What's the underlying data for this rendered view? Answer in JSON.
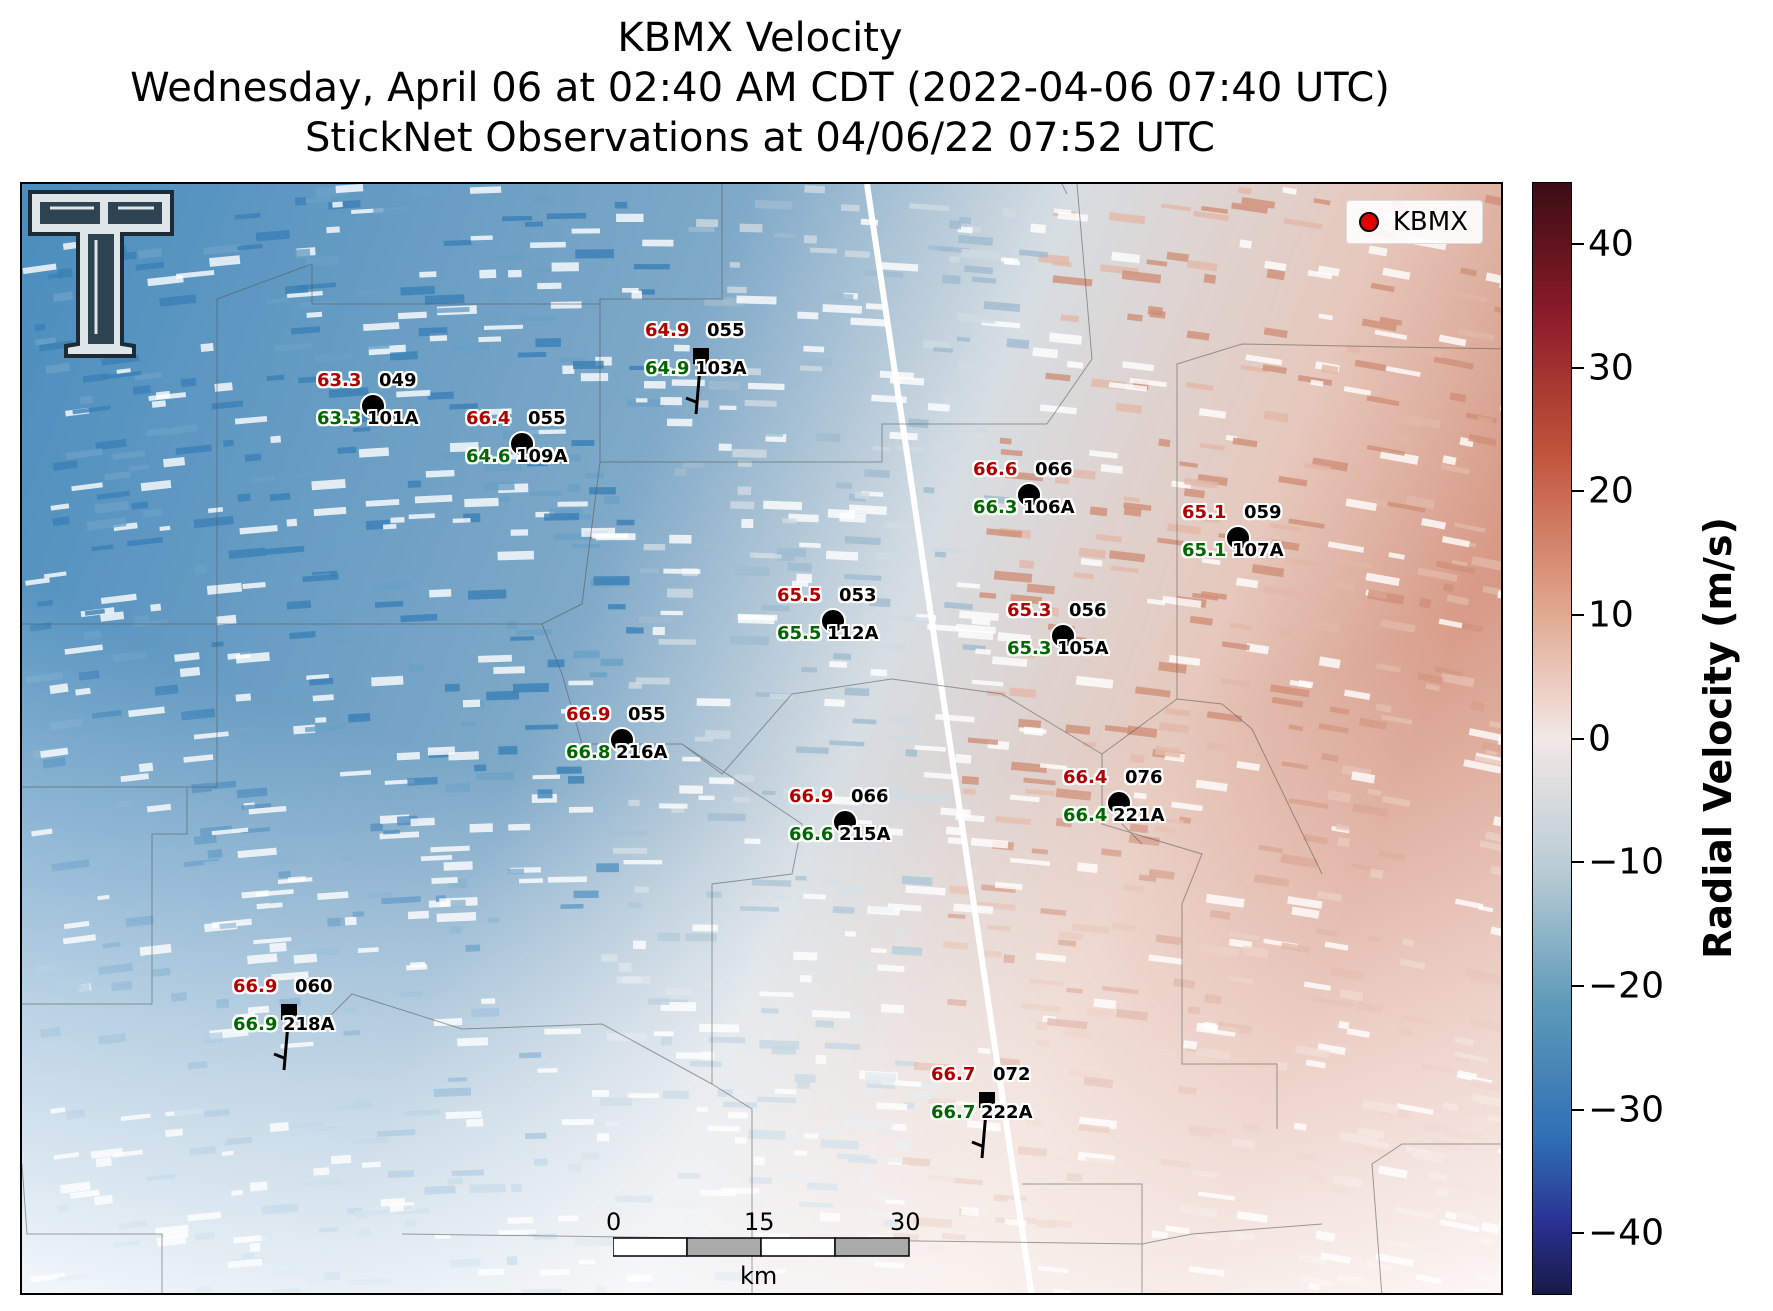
{
  "title": {
    "line1": "KBMX Velocity",
    "line2": "Wednesday, April 06 at 02:40 AM CDT (2022-04-06 07:40 UTC)",
    "line3": "StickNet Observations at 04/06/22 07:52 UTC"
  },
  "legend": {
    "label": "KBMX",
    "marker_color": "#e00000"
  },
  "colorbar": {
    "title": "Radial Velocity (m/s)",
    "ticks": [
      "40",
      "30",
      "20",
      "10",
      "0",
      "−10",
      "−20",
      "−30",
      "−40"
    ],
    "range": [
      -45,
      45
    ],
    "colors": {
      "max": "#3b0d14",
      "zero": "#f2e8e6",
      "min": "#161b45"
    }
  },
  "scalebar": {
    "labels": [
      "0",
      "15",
      "30"
    ],
    "unit": "km"
  },
  "stations": [
    {
      "temp": "63.3",
      "dew": "63.3",
      "dir": "049",
      "id": "101A",
      "type": "dot"
    },
    {
      "temp": "66.4",
      "dew": "64.6",
      "dir": "055",
      "id": "109A",
      "type": "dot"
    },
    {
      "temp": "64.9",
      "dew": "64.9",
      "dir": "055",
      "id": "103A",
      "type": "barb"
    },
    {
      "temp": "66.6",
      "dew": "66.3",
      "dir": "066",
      "id": "106A",
      "type": "dot"
    },
    {
      "temp": "65.1",
      "dew": "65.1",
      "dir": "059",
      "id": "107A",
      "type": "dot"
    },
    {
      "temp": "65.5",
      "dew": "65.5",
      "dir": "053",
      "id": "112A",
      "type": "dot"
    },
    {
      "temp": "65.3",
      "dew": "65.3",
      "dir": "056",
      "id": "105A",
      "type": "dot"
    },
    {
      "temp": "66.9",
      "dew": "66.8",
      "dir": "055",
      "id": "216A",
      "type": "dot"
    },
    {
      "temp": "66.4",
      "dew": "66.4",
      "dir": "076",
      "id": "221A",
      "type": "dot"
    },
    {
      "temp": "66.9",
      "dew": "66.6",
      "dir": "066",
      "id": "215A",
      "type": "dot"
    },
    {
      "temp": "66.9",
      "dew": "66.9",
      "dir": "060",
      "id": "218A",
      "type": "barb"
    },
    {
      "temp": "66.7",
      "dew": "66.7",
      "dir": "072",
      "id": "222A",
      "type": "barb"
    }
  ]
}
